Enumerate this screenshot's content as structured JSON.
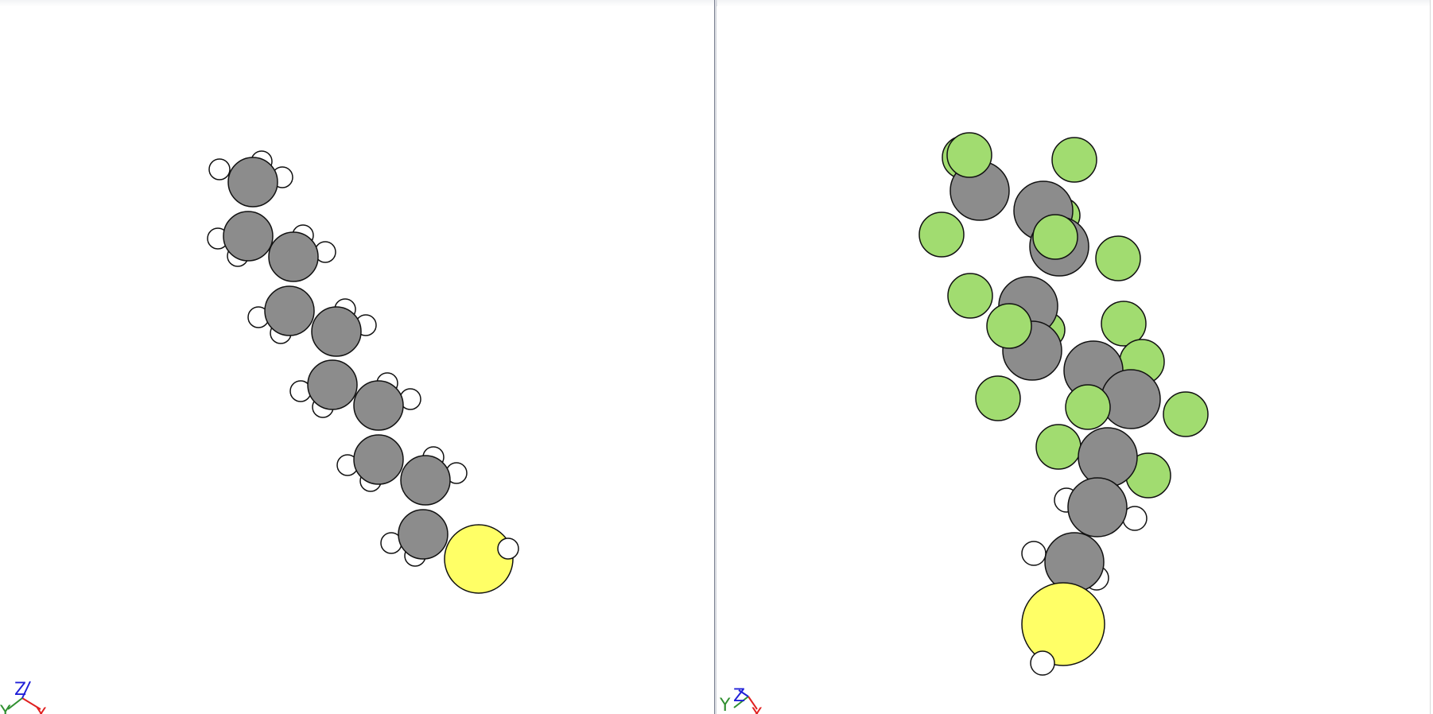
{
  "viewports": {
    "left": {
      "name": "molecule-viewer-left"
    },
    "right": {
      "name": "molecule-viewer-right"
    }
  },
  "colors": {
    "carbon": "#8c8c8c",
    "hydrogen": "#ffffff",
    "sulfur": "#ffff66",
    "fluorine": "#a1dc70",
    "x_axis": "#e02020",
    "y_axis": "#2f8f2f",
    "z_axis": "#2020d8",
    "outline": "#111111"
  },
  "axis_labels": {
    "x": "X",
    "y": "Y",
    "z": "Z"
  }
}
